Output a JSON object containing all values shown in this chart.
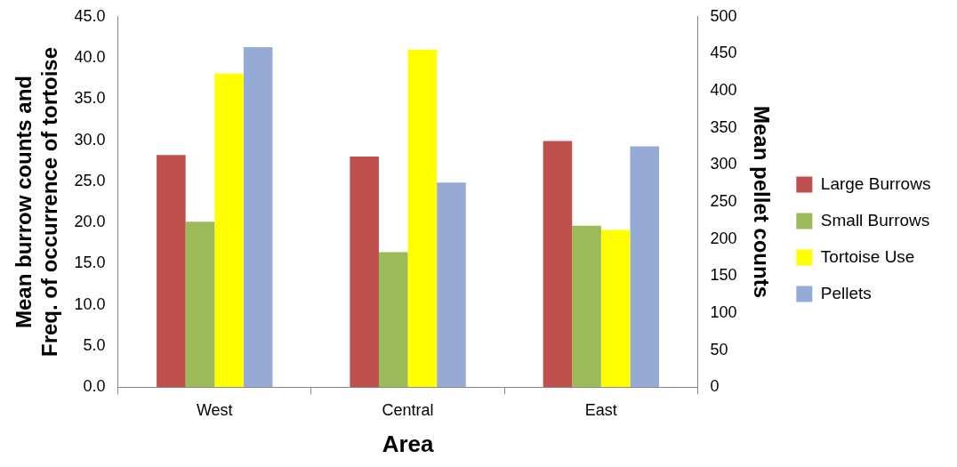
{
  "chart_data": {
    "type": "bar",
    "xlabel": "Area",
    "ylabel": "Mean burrow counts and\nFreq. of occurrence of tortoise",
    "y2label": "Mean pellet counts",
    "categories": [
      "West",
      "Central",
      "East"
    ],
    "series": [
      {
        "name": "Large Burrows",
        "color": "#c0504d",
        "values": [
          28.2,
          28.0,
          29.9
        ]
      },
      {
        "name": "Small Burrows",
        "color": "#9bbb59",
        "values": [
          20.1,
          16.4,
          19.6
        ]
      },
      {
        "name": "Tortoise Use",
        "color": "#ffff00",
        "values": [
          38.1,
          41.0,
          19.1
        ]
      },
      {
        "name": "Pellets",
        "color": "#95abd5",
        "values": [
          459,
          276,
          325
        ],
        "axis": "y2"
      }
    ],
    "ylim": [
      0,
      45
    ],
    "yticks": [
      {
        "value": 0,
        "label": "0.0"
      },
      {
        "value": 5,
        "label": "5.0"
      },
      {
        "value": 10,
        "label": "10.0"
      },
      {
        "value": 15,
        "label": "15.0"
      },
      {
        "value": 20,
        "label": "20.0"
      },
      {
        "value": 25,
        "label": "25.0"
      },
      {
        "value": 30,
        "label": "30.0"
      },
      {
        "value": 35,
        "label": "35.0"
      },
      {
        "value": 40,
        "label": "40.0"
      },
      {
        "value": 45,
        "label": "45.0"
      }
    ],
    "y2lim": [
      0,
      500
    ],
    "y2ticks": [
      0,
      50,
      100,
      150,
      200,
      250,
      300,
      350,
      400,
      450,
      500
    ],
    "grid": false,
    "legend": "right"
  }
}
